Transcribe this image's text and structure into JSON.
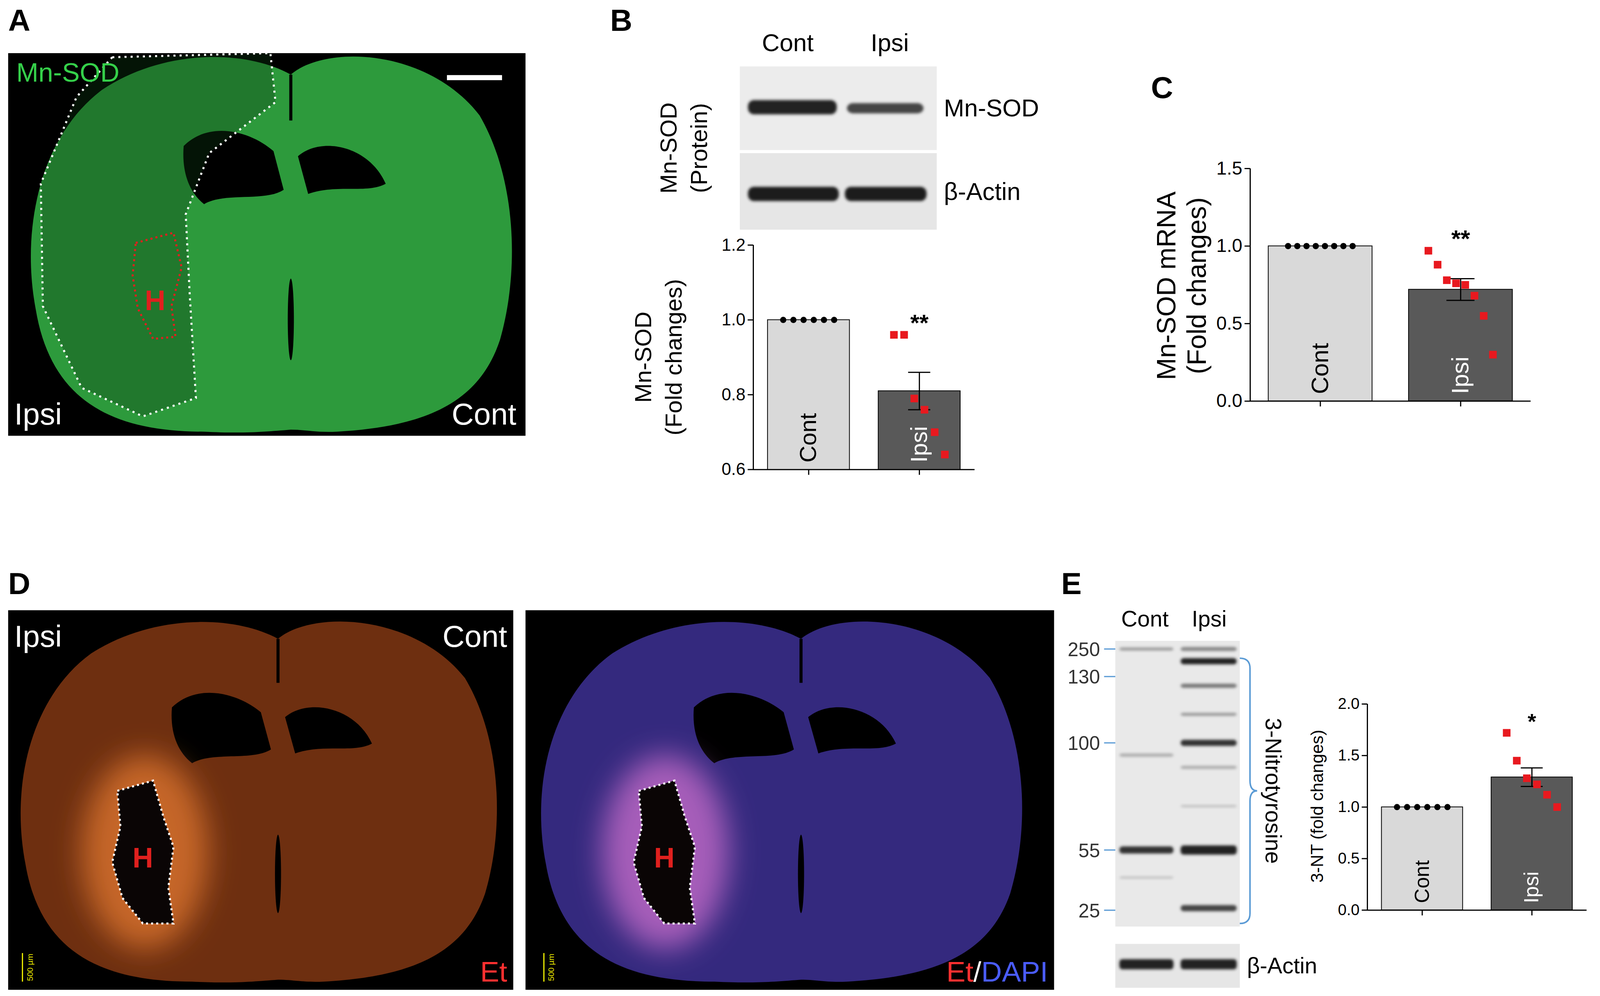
{
  "figure": {
    "panel_labels": [
      "A",
      "B",
      "C",
      "D",
      "E"
    ],
    "panel_A": {
      "stain": "Mn-SOD",
      "left_side": "Ipsi",
      "right_side": "Cont",
      "region": "H"
    },
    "panel_B_blot": {
      "lanes": [
        "Cont",
        "Ipsi"
      ],
      "side_label": [
        "Mn-SOD",
        "(Protein)"
      ],
      "bands": [
        "Mn-SOD",
        "β-Actin"
      ]
    },
    "panel_D": {
      "left_side": "Ipsi",
      "right_side": "Cont",
      "region": "H",
      "scale_bar": "500 µm",
      "stain_left": [
        "Et"
      ],
      "stain_right": [
        "Et",
        "/",
        "DAPI"
      ]
    },
    "panel_E_blot": {
      "lanes": [
        "Cont",
        "Ipsi"
      ],
      "markers": [
        250,
        130,
        100,
        55,
        25
      ],
      "bracket_label": "3-Nitrotyrosine",
      "loading_band": "β-Actin"
    }
  },
  "chart_data": [
    {
      "type": "bar",
      "categories": [
        "Cont",
        "Ipsi"
      ],
      "values": [
        1,
        0.81
      ],
      "errors": [
        0,
        0.05
      ],
      "points": [
        [
          1,
          1,
          1,
          1,
          1,
          1
        ],
        [
          0.96,
          0.96,
          0.79,
          0.76,
          0.7,
          0.64
        ]
      ],
      "significance": [
        null,
        "**"
      ],
      "colors": [
        "#d9d9d9",
        "#595959"
      ],
      "ylabel": [
        "Mn-SOD",
        "(Fold changes)"
      ],
      "ylim": [
        0.6,
        1.2
      ],
      "yticks": [
        0.6,
        0.8,
        {
          "value": 1,
          "label": "1.0"
        },
        1.2
      ],
      "tick_labels": "y"
    },
    {
      "type": "bar",
      "categories": [
        "Cont",
        "Ipsi"
      ],
      "values": [
        1,
        0.72
      ],
      "errors": [
        0,
        0.07
      ],
      "points": [
        [
          1,
          1,
          1,
          1,
          1,
          1,
          1,
          1
        ],
        [
          0.97,
          0.88,
          0.78,
          0.76,
          0.75,
          0.68,
          0.55,
          0.3
        ]
      ],
      "significance": [
        null,
        "**"
      ],
      "colors": [
        "#d9d9d9",
        "#595959"
      ],
      "ylabel": [
        "Mn-SOD mRNA",
        "(Fold changes)"
      ],
      "ylim": [
        0,
        1.5
      ],
      "yticks": [
        {
          "value": 0,
          "label": "0.0"
        },
        0.5,
        {
          "value": 1,
          "label": "1.0"
        },
        1.5
      ],
      "tick_labels": "y"
    },
    {
      "type": "bar",
      "categories": [
        "Cont",
        "Ipsi"
      ],
      "values": [
        1,
        1.29
      ],
      "errors": [
        0,
        0.09
      ],
      "points": [
        [
          1,
          1,
          1,
          1,
          1,
          1
        ],
        [
          1.72,
          1.45,
          1.28,
          1.22,
          1.12,
          1.0
        ]
      ],
      "significance": [
        null,
        "*"
      ],
      "colors": [
        "#d9d9d9",
        "#595959"
      ],
      "ylabel": [
        "3-NT (fold changes)"
      ],
      "ylim": [
        0,
        2
      ],
      "yticks": [
        {
          "value": 0,
          "label": "0.0"
        },
        0.5,
        {
          "value": 1,
          "label": "1.0"
        },
        1.5,
        {
          "value": 2,
          "label": "2.0"
        }
      ],
      "tick_labels": "y"
    }
  ]
}
